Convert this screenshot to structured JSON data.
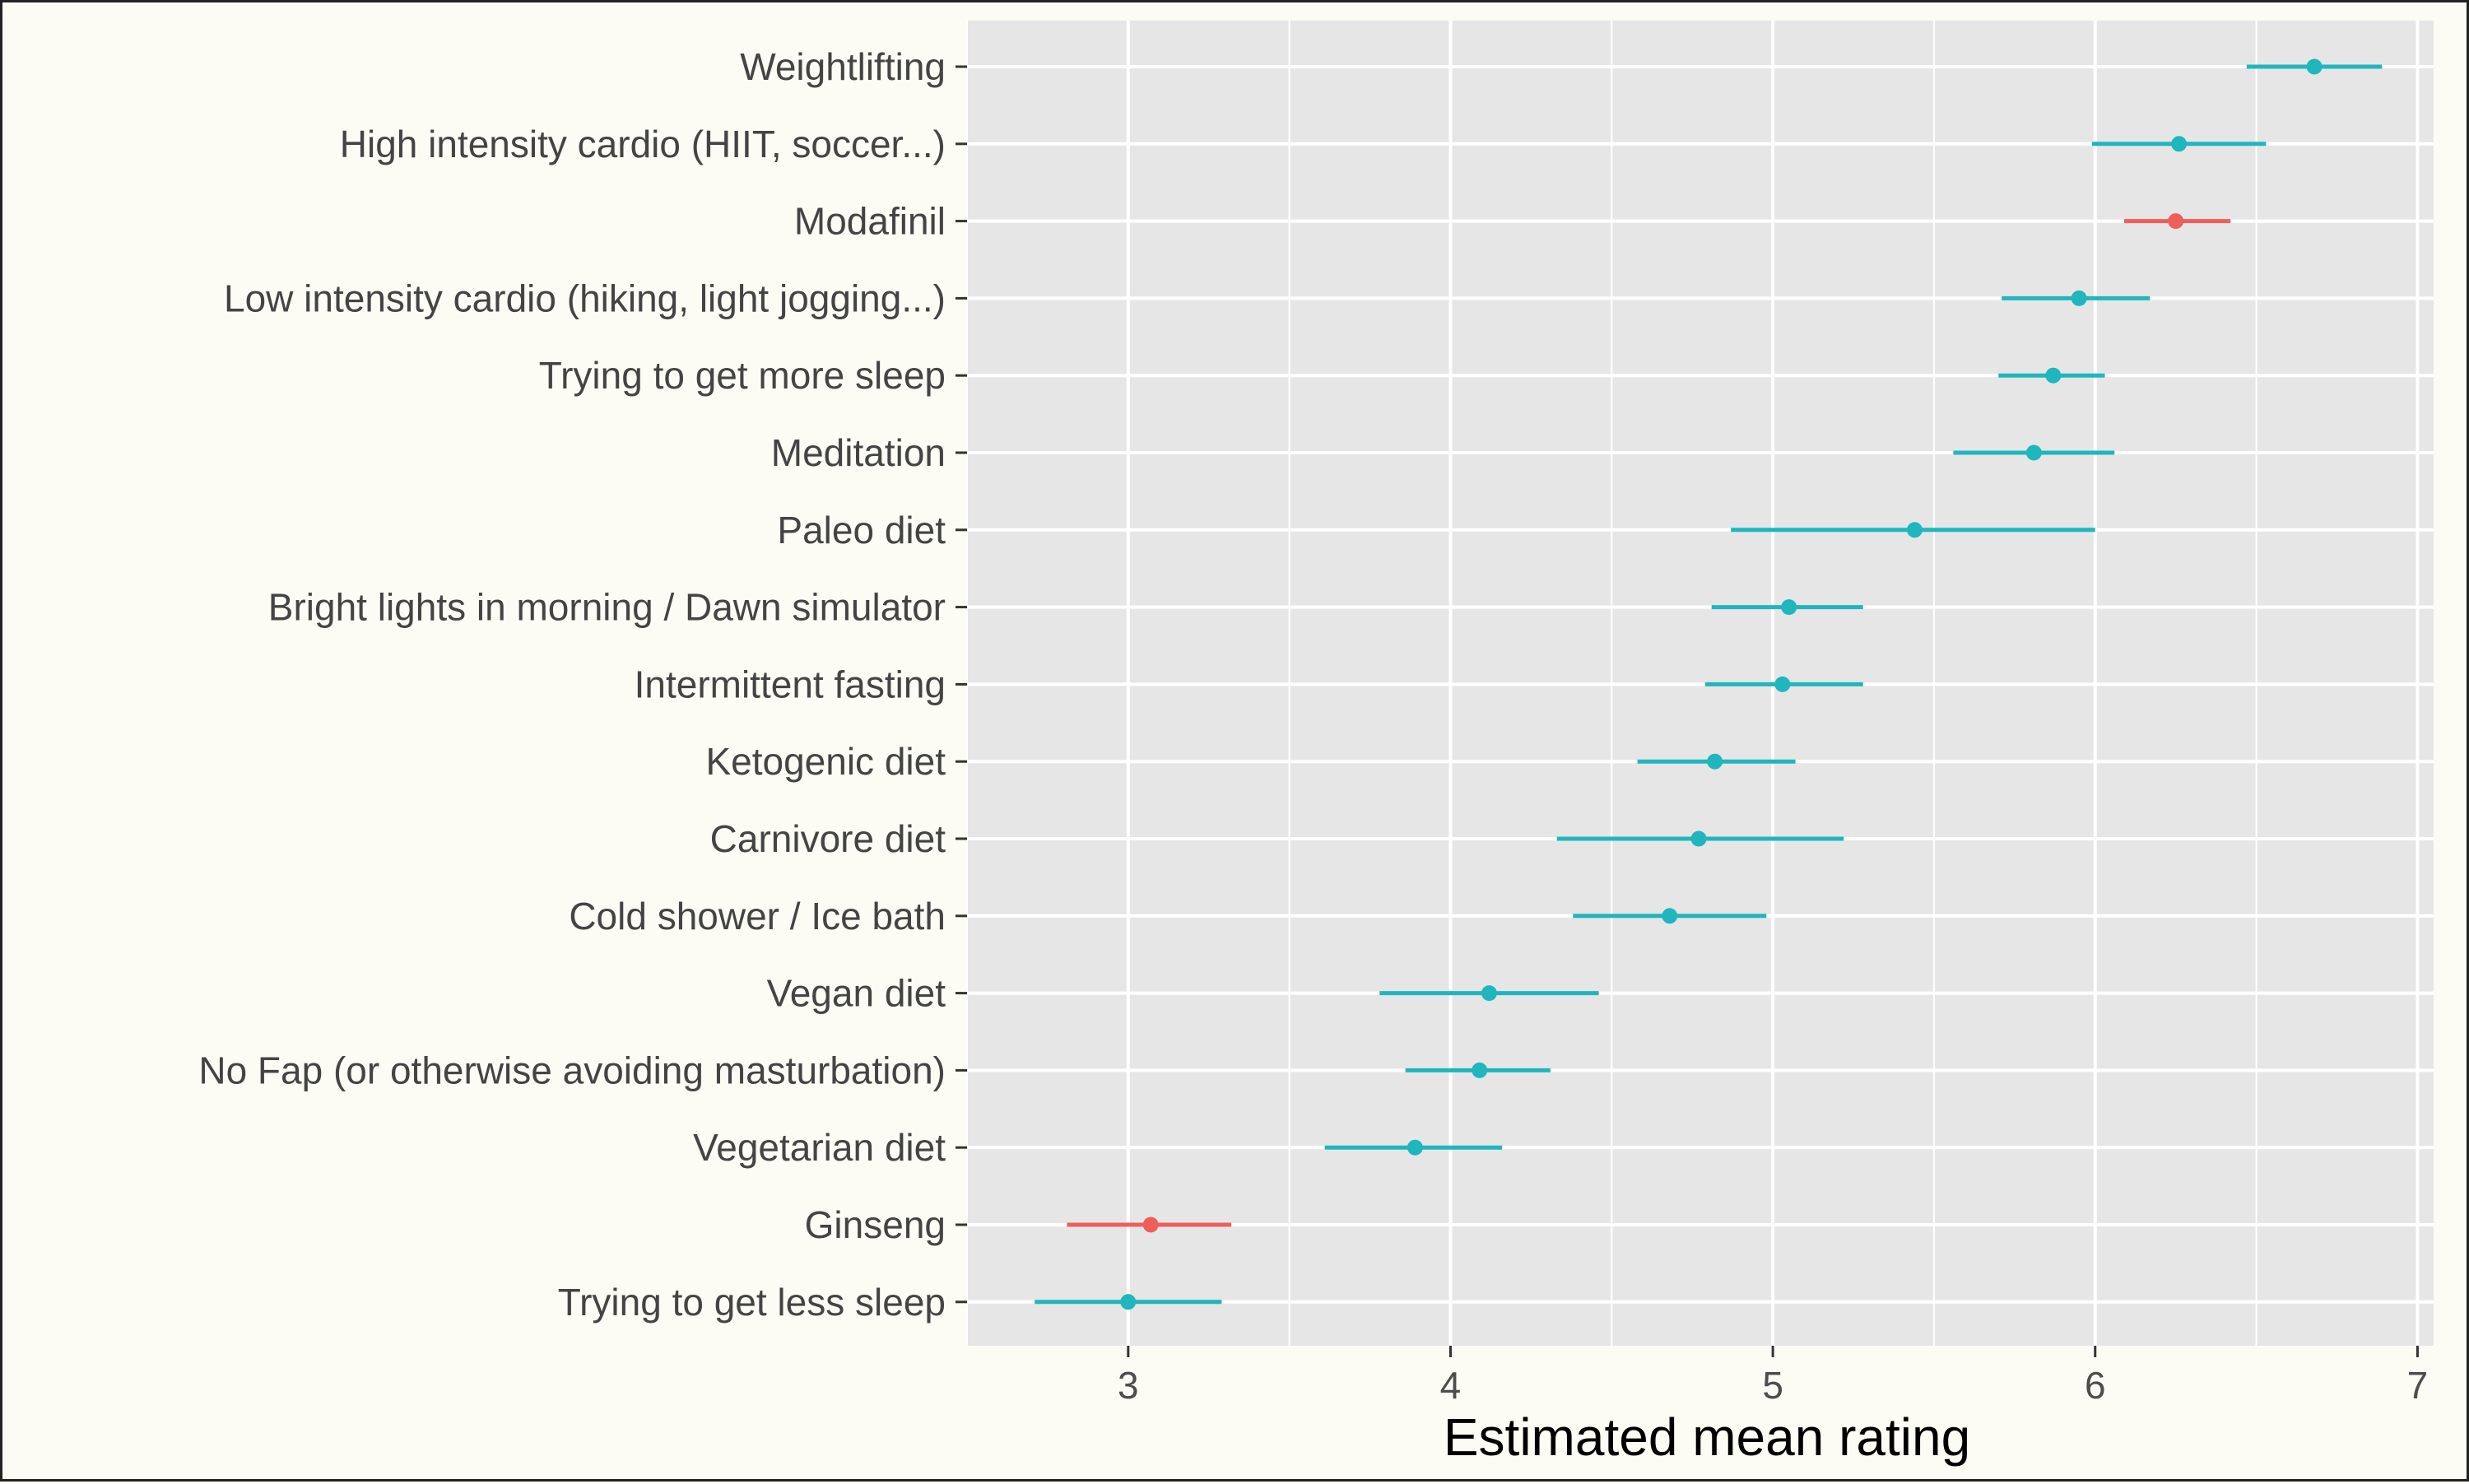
{
  "chart_data": {
    "type": "scatter",
    "variant": "point-range (dot with horizontal interval)",
    "title": "",
    "xlabel": "Estimated mean rating",
    "ylabel": "",
    "xlim": [
      2.5,
      7.05
    ],
    "x_ticks": [
      3,
      4,
      5,
      6,
      7
    ],
    "x_tick_labels": [
      "3",
      "4",
      "5",
      "6",
      "7"
    ],
    "grid": true,
    "legend": "none",
    "colors": {
      "teal": "#1fb6be",
      "red": "#ee5f5a",
      "panel": "#e6e6e6",
      "grid": "#ffffff",
      "background": "#fcfcf5"
    },
    "points": [
      {
        "label": "Weightlifting",
        "estimate": 6.68,
        "low": 6.47,
        "high": 6.89,
        "color": "teal"
      },
      {
        "label": "High intensity cardio (HIIT, soccer...)",
        "estimate": 6.26,
        "low": 5.99,
        "high": 6.53,
        "color": "teal"
      },
      {
        "label": "Modafinil",
        "estimate": 6.25,
        "low": 6.09,
        "high": 6.42,
        "color": "red"
      },
      {
        "label": "Low intensity cardio (hiking, light jogging...)",
        "estimate": 5.95,
        "low": 5.71,
        "high": 6.17,
        "color": "teal"
      },
      {
        "label": "Trying to get more sleep",
        "estimate": 5.87,
        "low": 5.7,
        "high": 6.03,
        "color": "teal"
      },
      {
        "label": "Meditation",
        "estimate": 5.81,
        "low": 5.56,
        "high": 6.06,
        "color": "teal"
      },
      {
        "label": "Paleo diet",
        "estimate": 5.44,
        "low": 4.87,
        "high": 6.0,
        "color": "teal"
      },
      {
        "label": "Bright lights in morning / Dawn simulator",
        "estimate": 5.05,
        "low": 4.81,
        "high": 5.28,
        "color": "teal"
      },
      {
        "label": "Intermittent fasting",
        "estimate": 5.03,
        "low": 4.79,
        "high": 5.28,
        "color": "teal"
      },
      {
        "label": "Ketogenic diet",
        "estimate": 4.82,
        "low": 4.58,
        "high": 5.07,
        "color": "teal"
      },
      {
        "label": "Carnivore diet",
        "estimate": 4.77,
        "low": 4.33,
        "high": 5.22,
        "color": "teal"
      },
      {
        "label": "Cold shower / Ice bath",
        "estimate": 4.68,
        "low": 4.38,
        "high": 4.98,
        "color": "teal"
      },
      {
        "label": "Vegan diet",
        "estimate": 4.12,
        "low": 3.78,
        "high": 4.46,
        "color": "teal"
      },
      {
        "label": "No Fap (or otherwise avoiding masturbation)",
        "estimate": 4.09,
        "low": 3.86,
        "high": 4.31,
        "color": "teal"
      },
      {
        "label": "Vegetarian diet",
        "estimate": 3.89,
        "low": 3.61,
        "high": 4.16,
        "color": "teal"
      },
      {
        "label": "Ginseng",
        "estimate": 3.07,
        "low": 2.81,
        "high": 3.32,
        "color": "red"
      },
      {
        "label": "Trying to get less sleep",
        "estimate": 3.0,
        "low": 2.71,
        "high": 3.29,
        "color": "teal"
      }
    ]
  }
}
